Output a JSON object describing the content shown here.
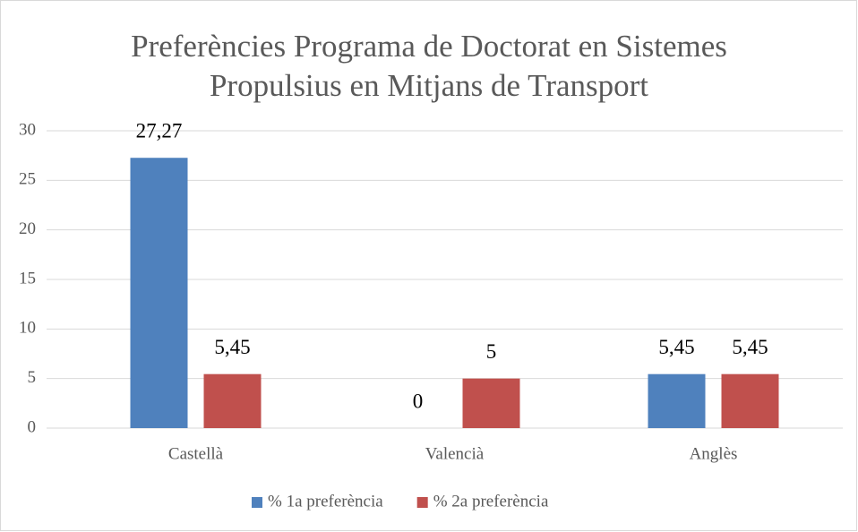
{
  "chart_data": {
    "type": "bar",
    "title": "Preferències Programa de Doctorat en Sistemes Propulsius en Mitjans de Transport",
    "categories": [
      "Castellà",
      "Valencià",
      "Anglès"
    ],
    "series": [
      {
        "name": "% 1a preferència",
        "color": "#4f81bd",
        "values": [
          27.27,
          0,
          5.45
        ],
        "value_labels": [
          "27,27",
          "0",
          "5,45"
        ]
      },
      {
        "name": "% 2a preferència",
        "color": "#c0504d",
        "values": [
          5.45,
          5,
          5.45
        ],
        "value_labels": [
          "5,45",
          "5",
          "5,45"
        ]
      }
    ],
    "ylim": [
      0,
      30
    ],
    "yticks": [
      0,
      5,
      10,
      15,
      20,
      25,
      30
    ],
    "grid": true,
    "legend": "bottom"
  }
}
